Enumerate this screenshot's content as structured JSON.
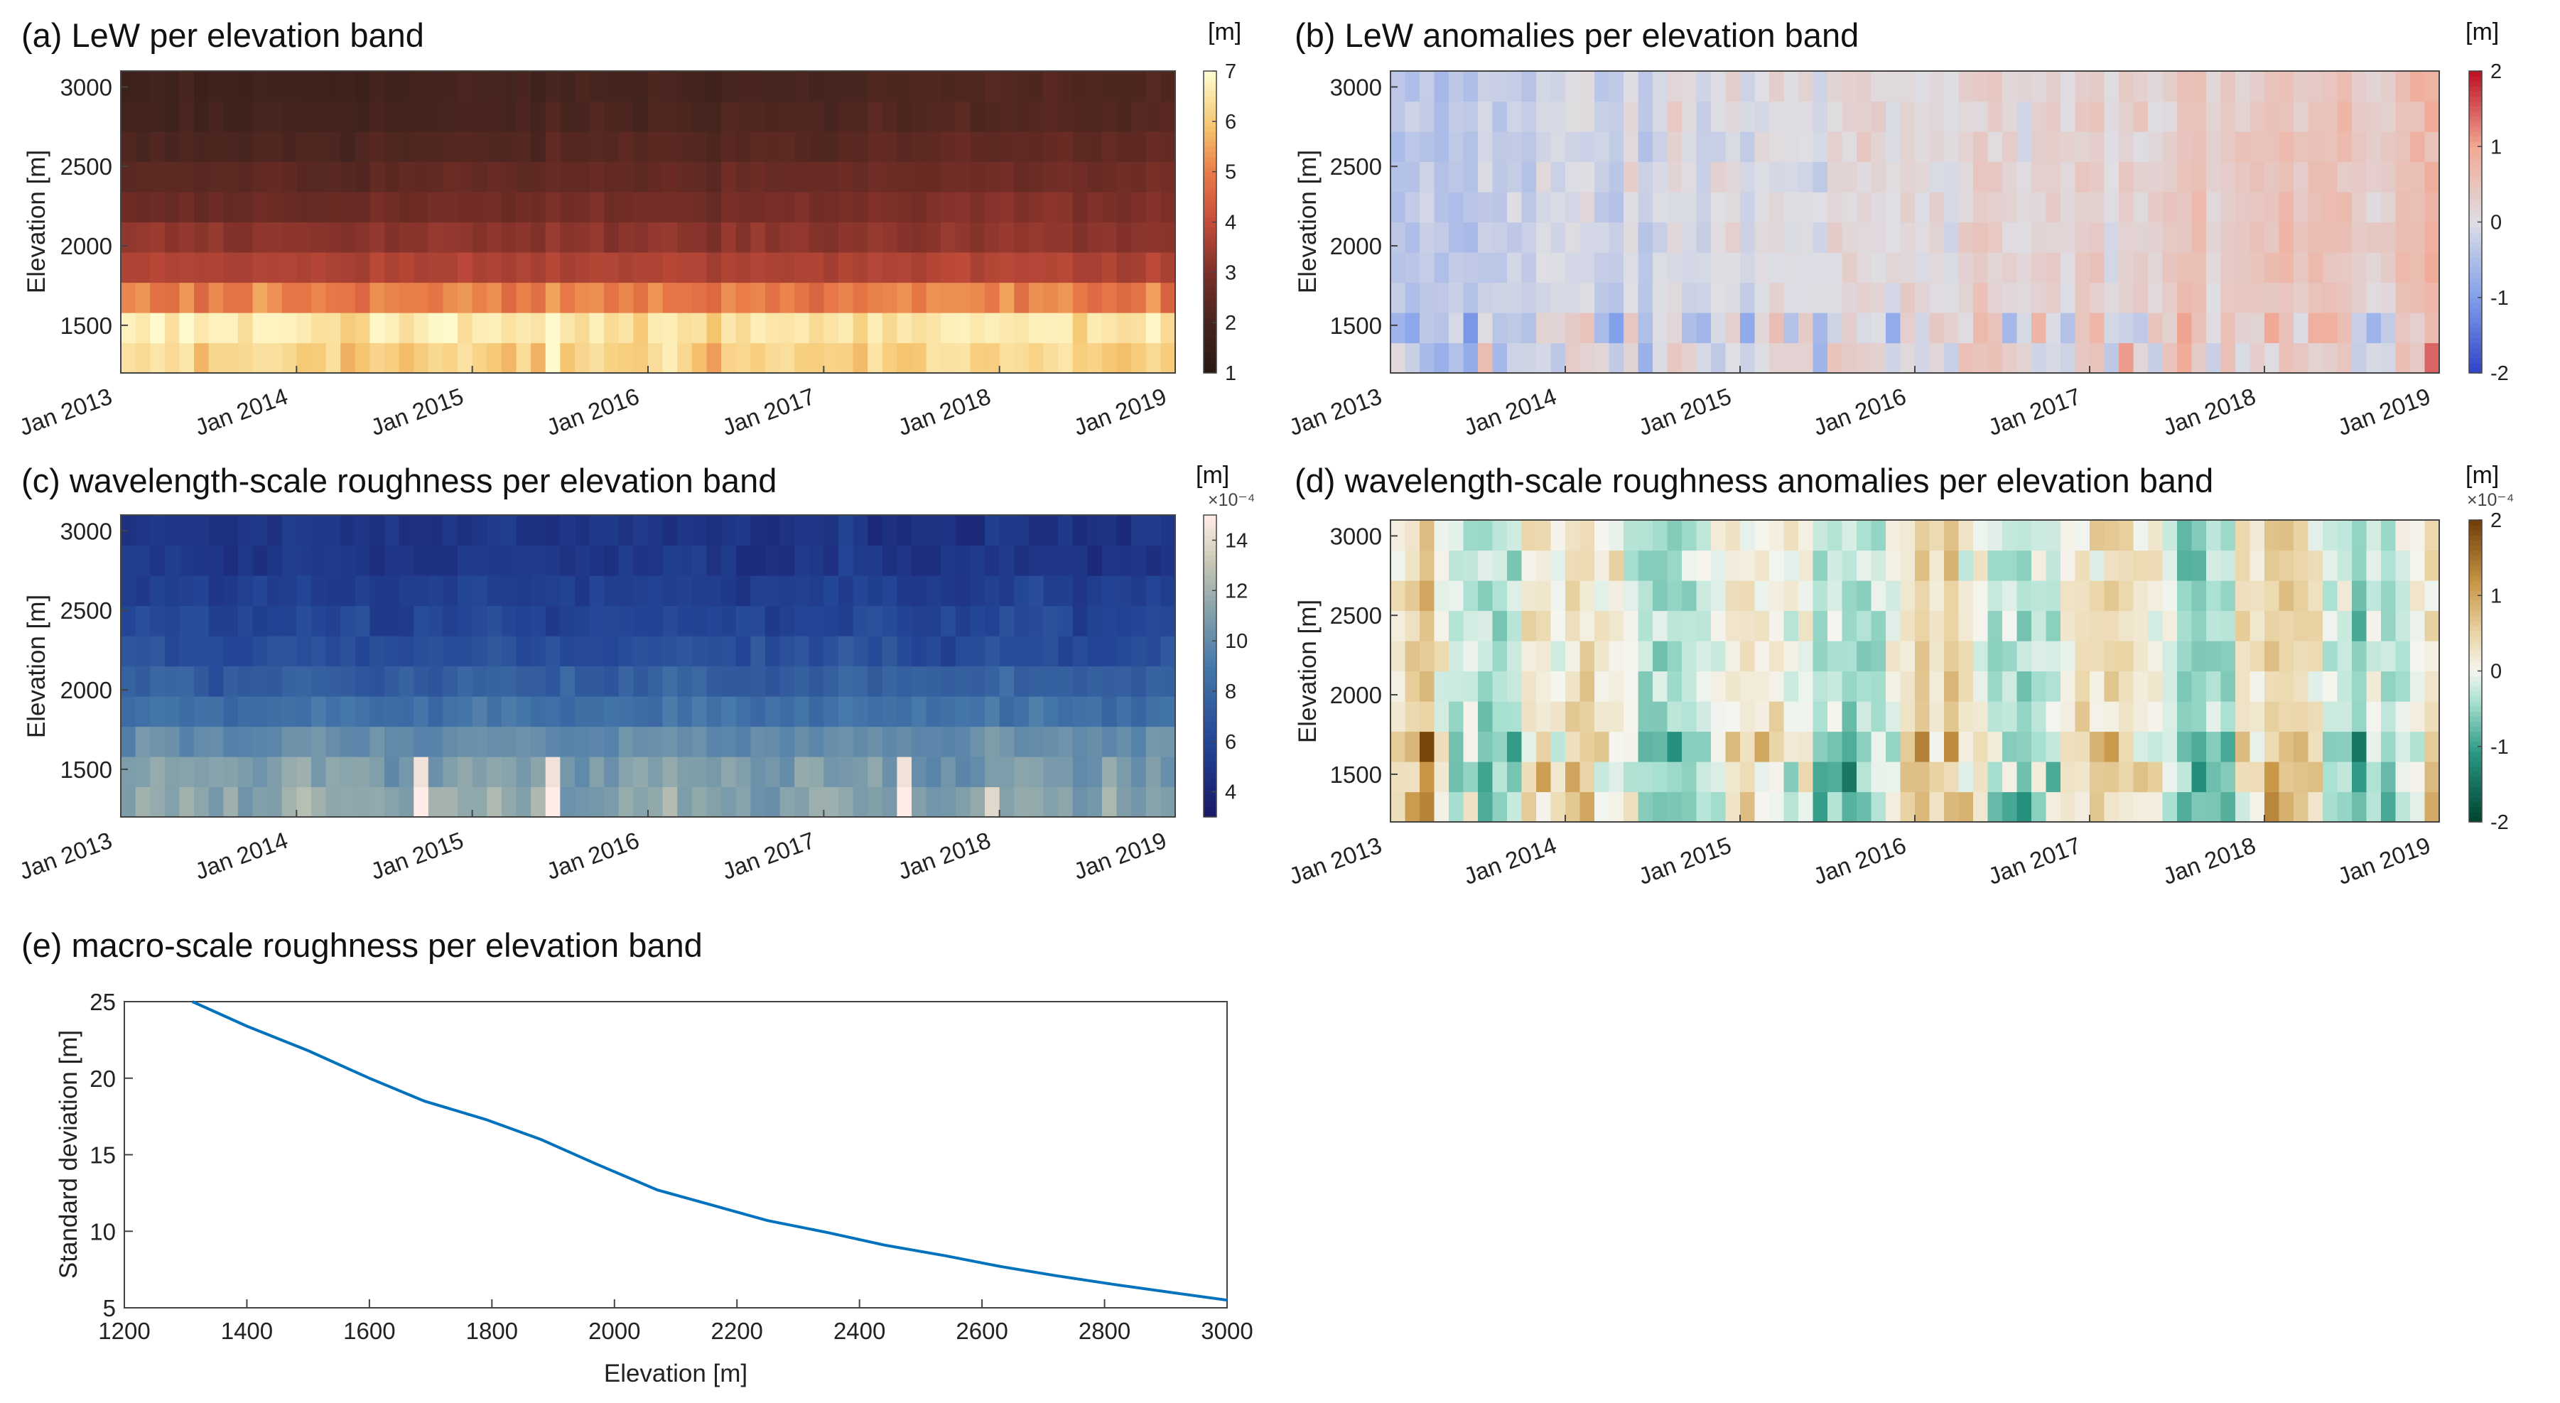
{
  "chart_data": [
    {
      "panel": "a",
      "type": "heatmap",
      "title": "(a) LeW per elevation band",
      "ylabel": "Elevation [m]",
      "colorbar_unit": "[m]",
      "colorbar_exponent": "",
      "colormap": "hot-yellow",
      "clim": [
        1,
        7
      ],
      "colorbar_ticks": [
        "1",
        "2",
        "3",
        "4",
        "5",
        "6",
        "7"
      ],
      "x_ticks": [
        "Jan 2013",
        "Jan 2014",
        "Jan 2015",
        "Jan 2016",
        "Jan 2017",
        "Jan 2018",
        "Jan 2019"
      ],
      "y_ticks": [
        "1500",
        "2000",
        "2500",
        "3000"
      ],
      "x_range": [
        "Jan 2013",
        "Jan 2019"
      ],
      "ylim": [
        1200,
        3100
      ],
      "band_values_typical": [
        {
          "elevation": 1300,
          "value": 6.2
        },
        {
          "elevation": 1500,
          "value": 6.6
        },
        {
          "elevation": 1700,
          "value": 5.0
        },
        {
          "elevation": 1900,
          "value": 3.7
        },
        {
          "elevation": 2100,
          "value": 3.2
        },
        {
          "elevation": 2300,
          "value": 2.6
        },
        {
          "elevation": 2500,
          "value": 2.3
        },
        {
          "elevation": 2700,
          "value": 2.0
        },
        {
          "elevation": 2900,
          "value": 1.8
        },
        {
          "elevation": 3050,
          "value": 1.7
        }
      ]
    },
    {
      "panel": "b",
      "type": "heatmap",
      "title": "(b) LeW anomalies per elevation band",
      "ylabel": "Elevation [m]",
      "colorbar_unit": "[m]",
      "colorbar_exponent": "",
      "colormap": "blue-white-red",
      "clim": [
        -2,
        2
      ],
      "colorbar_ticks": [
        "-2",
        "-1",
        "0",
        "1",
        "2"
      ],
      "x_ticks": [
        "Jan 2013",
        "Jan 2014",
        "Jan 2015",
        "Jan 2016",
        "Jan 2017",
        "Jan 2018",
        "Jan 2019"
      ],
      "y_ticks": [
        "1500",
        "2000",
        "2500",
        "3000"
      ],
      "x_range": [
        "Jan 2013",
        "Jan 2019"
      ],
      "ylim": [
        1200,
        3100
      ]
    },
    {
      "panel": "c",
      "type": "heatmap",
      "title": "(c) wavelength-scale roughness per elevation band",
      "ylabel": "Elevation [m]",
      "colorbar_unit": "[m]",
      "colorbar_exponent": "×10⁻⁴",
      "colormap": "navy-blue-tan",
      "clim": [
        3,
        15
      ],
      "colorbar_ticks": [
        "4",
        "6",
        "8",
        "10",
        "12",
        "14"
      ],
      "x_ticks": [
        "Jan 2013",
        "Jan 2014",
        "Jan 2015",
        "Jan 2016",
        "Jan 2017",
        "Jan 2018",
        "Jan 2019"
      ],
      "y_ticks": [
        "1500",
        "2000",
        "2500",
        "3000"
      ],
      "x_range": [
        "Jan 2013",
        "Jan 2019"
      ],
      "ylim": [
        1200,
        3100
      ]
    },
    {
      "panel": "d",
      "type": "heatmap",
      "title": "(d) wavelength-scale roughness anomalies per elevation band",
      "ylabel": "Elevation [m]",
      "colorbar_unit": "[m]",
      "colorbar_exponent": "×10⁻⁴",
      "colormap": "teal-white-brown",
      "clim": [
        -2,
        2
      ],
      "colorbar_ticks": [
        "-2",
        "-1",
        "0",
        "1",
        "2"
      ],
      "x_ticks": [
        "Jan 2013",
        "Jan 2014",
        "Jan 2015",
        "Jan 2016",
        "Jan 2017",
        "Jan 2018",
        "Jan 2019"
      ],
      "y_ticks": [
        "1500",
        "2000",
        "2500",
        "3000"
      ],
      "x_range": [
        "Jan 2013",
        "Jan 2019"
      ],
      "ylim": [
        1200,
        3100
      ]
    },
    {
      "panel": "e",
      "type": "line",
      "title": "(e) macro-scale roughness per elevation band",
      "xlabel": "Elevation [m]",
      "ylabel": "Standard deviation [m]",
      "xlim": [
        1200,
        3000
      ],
      "ylim": [
        5,
        25
      ],
      "x_ticks": [
        "1200",
        "1400",
        "1600",
        "1800",
        "2000",
        "2200",
        "2400",
        "2600",
        "2800",
        "3000"
      ],
      "y_ticks": [
        "5",
        "10",
        "15",
        "20",
        "25"
      ],
      "color": "#0072BD",
      "x": [
        1300,
        1400,
        1500,
        1600,
        1690,
        1790,
        1880,
        1970,
        2070,
        2160,
        2250,
        2350,
        2440,
        2540,
        2630,
        2720,
        2820,
        2910,
        3000
      ],
      "y": [
        25.2,
        23.4,
        21.8,
        20.0,
        18.5,
        17.3,
        16.0,
        14.4,
        12.7,
        11.7,
        10.7,
        9.9,
        9.1,
        8.4,
        7.7,
        7.1,
        6.5,
        6.0,
        5.5
      ]
    }
  ]
}
